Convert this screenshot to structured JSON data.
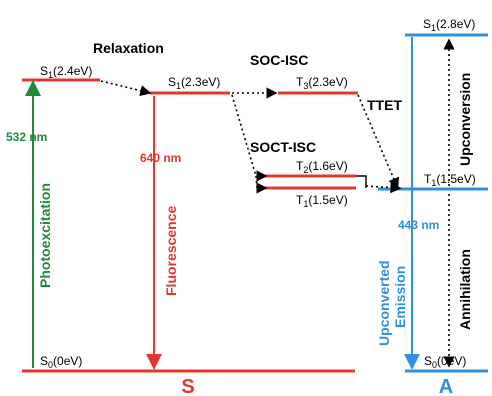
{
  "colors": {
    "red": "#e8342f",
    "green": "#1f8a3a",
    "blue": "#2f8fe0",
    "black": "#000000"
  },
  "donor": {
    "s1": {
      "main": "S",
      "sub": "1",
      "energy": "(2.4eV)"
    },
    "s1_relaxed": {
      "main": "S",
      "sub": "1",
      "energy": "(2.3eV)"
    },
    "s0": {
      "main": "S",
      "sub": "0",
      "energy": "(0eV)"
    },
    "t3": {
      "main": "T",
      "sub": "3",
      "energy": "(2.3eV)"
    },
    "t2": {
      "main": "T",
      "sub": "2",
      "energy": "(1.6eV)"
    },
    "t1": {
      "main": "T",
      "sub": "1",
      "energy": "(1.5eV)"
    },
    "label": "S"
  },
  "acceptor": {
    "s1": {
      "main": "S",
      "sub": "1",
      "energy": "(2.8eV)"
    },
    "t1": {
      "main": "T",
      "sub": "1",
      "energy": "(1.5eV)"
    },
    "s0": {
      "main": "S",
      "sub": "0",
      "energy": "(0eV)"
    },
    "label": "A"
  },
  "processes": {
    "relaxation": "Relaxation",
    "soc_isc": "SOC-ISC",
    "soct_isc": "SOCT-ISC",
    "ttet": "TTET",
    "photoexcitation": "Photoexcitation",
    "photoexcitation_wl": "532 nm",
    "fluorescence": "Fluorescence",
    "fluorescence_wl": "640 nm",
    "upconverted_line1": "Upconverted",
    "upconverted_line2": "Emission",
    "upconverted_wl": "443 nm",
    "upconversion": "Upconversion",
    "annihilation": "Annihilation"
  }
}
